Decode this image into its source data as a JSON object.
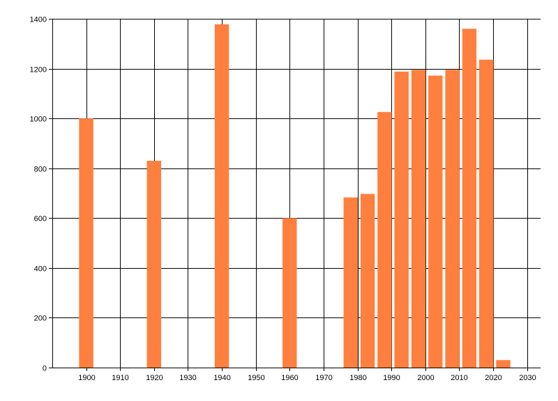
{
  "chart_data": {
    "type": "bar",
    "title": "",
    "xlabel": "",
    "ylabel": "",
    "x": [
      1900,
      1920,
      1940,
      1960,
      1978,
      1983,
      1988,
      1993,
      1998,
      2003,
      2008,
      2013,
      2018,
      2023
    ],
    "values": [
      1000,
      830,
      1378,
      600,
      683,
      697,
      1026,
      1188,
      1195,
      1172,
      1195,
      1360,
      1236,
      30
    ],
    "xlim": [
      1890,
      2034
    ],
    "ylim": [
      0,
      1400
    ],
    "xticks": [
      1900,
      1910,
      1920,
      1930,
      1940,
      1950,
      1960,
      1970,
      1980,
      1990,
      2000,
      2010,
      2020,
      2030
    ],
    "yticks": [
      0,
      200,
      400,
      600,
      800,
      1000,
      1200,
      1400
    ],
    "grid": true,
    "legend": "none",
    "bar_color": "#FF7F3F",
    "grid_color": "#000000"
  }
}
